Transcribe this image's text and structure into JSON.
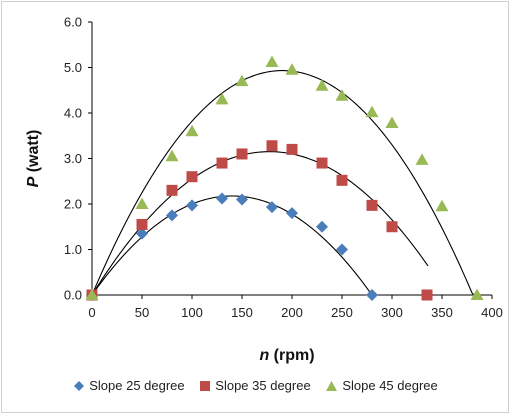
{
  "chart_data": {
    "type": "scatter",
    "title": "",
    "xlabel_symbol": "n",
    "xlabel_unit": " (rpm)",
    "ylabel_symbol": "P",
    "ylabel_unit": "  (watt)",
    "xlim": [
      0,
      400
    ],
    "ylim": [
      0,
      6
    ],
    "xticks": [
      0,
      50,
      100,
      150,
      200,
      250,
      300,
      350,
      400
    ],
    "yticks": [
      "0.0",
      "1.0",
      "2.0",
      "3.0",
      "4.0",
      "5.0",
      "6.0"
    ],
    "grid": false,
    "legend_position": "bottom",
    "series": [
      {
        "name": "Slope 25 degree",
        "marker": "diamond",
        "color": "#4a7ebb",
        "points": [
          [
            0,
            0
          ],
          [
            50,
            1.35
          ],
          [
            80,
            1.75
          ],
          [
            100,
            1.97
          ],
          [
            130,
            2.12
          ],
          [
            150,
            2.1
          ],
          [
            180,
            1.93
          ],
          [
            200,
            1.8
          ],
          [
            230,
            1.5
          ],
          [
            250,
            1.0
          ],
          [
            280,
            0.0
          ]
        ],
        "trend": [
          -0.0001111,
          0.0311,
          0.0
        ]
      },
      {
        "name": "Slope 35 degree",
        "marker": "square",
        "color": "#be4b48",
        "points": [
          [
            0,
            0
          ],
          [
            50,
            1.55
          ],
          [
            80,
            2.3
          ],
          [
            100,
            2.6
          ],
          [
            130,
            2.9
          ],
          [
            150,
            3.1
          ],
          [
            180,
            3.28
          ],
          [
            200,
            3.2
          ],
          [
            230,
            2.9
          ],
          [
            250,
            2.52
          ],
          [
            280,
            1.97
          ],
          [
            300,
            1.5
          ],
          [
            335,
            0.0
          ]
        ],
        "trend": [
          -0.0001,
          0.0355,
          0.0
        ]
      },
      {
        "name": "Slope 45 degree",
        "marker": "triangle",
        "color": "#98b954",
        "points": [
          [
            0,
            0
          ],
          [
            50,
            2.0
          ],
          [
            80,
            3.05
          ],
          [
            100,
            3.6
          ],
          [
            130,
            4.3
          ],
          [
            150,
            4.7
          ],
          [
            180,
            5.12
          ],
          [
            200,
            4.95
          ],
          [
            230,
            4.6
          ],
          [
            250,
            4.38
          ],
          [
            280,
            4.02
          ],
          [
            300,
            3.78
          ],
          [
            330,
            2.97
          ],
          [
            350,
            1.95
          ],
          [
            385,
            0.0
          ]
        ],
        "trend": [
          -0.000136,
          0.0518,
          0.0
        ]
      }
    ]
  }
}
